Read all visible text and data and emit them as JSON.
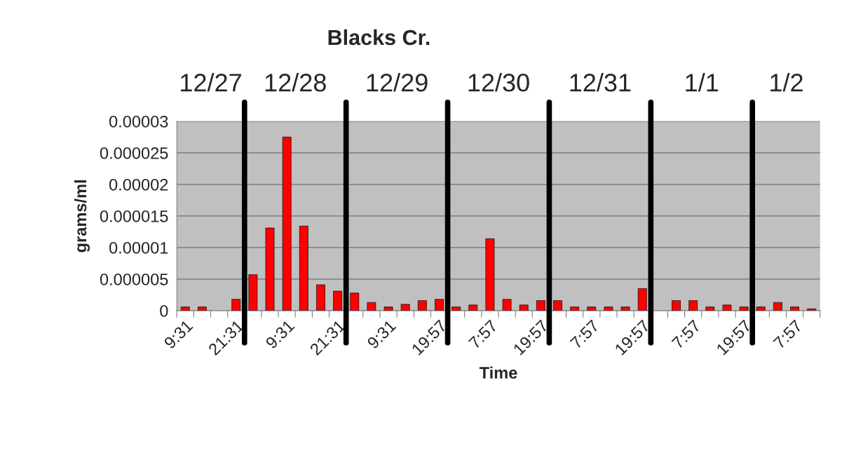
{
  "chart_data": {
    "type": "bar",
    "title": "Blacks Cr.",
    "xlabel": "Time",
    "ylabel": "grams/ml",
    "categories": [
      "9:31",
      null,
      null,
      "21:31",
      null,
      null,
      "9:31",
      null,
      null,
      "21:31",
      null,
      null,
      "9:31",
      null,
      null,
      "19:57",
      null,
      null,
      "7:57",
      null,
      null,
      "19:57",
      null,
      null,
      "7:57",
      null,
      null,
      "19:57",
      null,
      null,
      "7:57",
      null,
      null,
      "19:57",
      null,
      null,
      "7:57",
      null
    ],
    "values": [
      6e-07,
      6e-07,
      null,
      1.8e-06,
      5.7e-06,
      1.31e-05,
      2.75e-05,
      1.34e-05,
      4.1e-06,
      3.1e-06,
      2.8e-06,
      1.3e-06,
      6e-07,
      1e-06,
      1.6e-06,
      1.8e-06,
      6e-07,
      9e-07,
      1.14e-05,
      1.8e-06,
      9e-07,
      1.6e-06,
      1.6e-06,
      6e-07,
      6e-07,
      6e-07,
      6e-07,
      3.5e-06,
      null,
      1.6e-06,
      1.6e-06,
      6e-07,
      9e-07,
      6e-07,
      6e-07,
      1.3e-06,
      6e-07,
      3e-07
    ],
    "color": "#ff0000",
    "ylim": [
      0,
      3e-05
    ],
    "yticks": [
      0,
      {
        "value": 5e-06,
        "label": "0.000005"
      },
      {
        "value": 1e-05,
        "label": "0.00001"
      },
      {
        "value": 1.5e-05,
        "label": "0.000015"
      },
      {
        "value": 2e-05,
        "label": "0.00002"
      },
      {
        "value": 2.5e-05,
        "label": "0.000025"
      },
      {
        "value": 3e-05,
        "label": "0.00003"
      }
    ],
    "annotations": [
      "12/27",
      "12/28",
      "12/29",
      "12/30",
      "12/31",
      "1/1",
      "1/2"
    ],
    "grid": "y",
    "legend": false
  }
}
